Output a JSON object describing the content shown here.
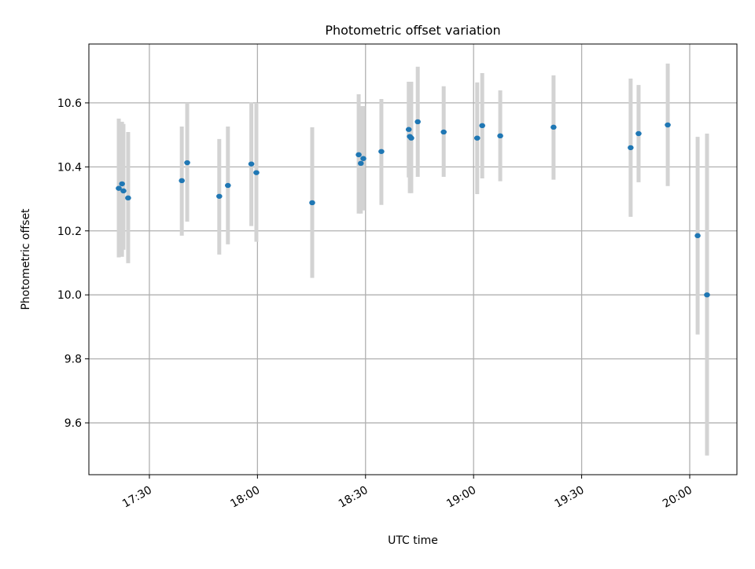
{
  "chart_data": {
    "type": "scatter",
    "title": "Photometric offset variation",
    "xlabel": "UTC time",
    "ylabel": "Photometric offset",
    "xlim": [
      "17:13:12",
      "20:13:06"
    ],
    "ylim": [
      9.438,
      10.784
    ],
    "grid": true,
    "xticks": [
      {
        "t": "17:30",
        "label": "17:30"
      },
      {
        "t": "18:00",
        "label": "18:00"
      },
      {
        "t": "18:30",
        "label": "18:30"
      },
      {
        "t": "19:00",
        "label": "19:00"
      },
      {
        "t": "19:30",
        "label": "19:30"
      },
      {
        "t": "20:00",
        "label": "20:00"
      }
    ],
    "yticks": [
      {
        "v": 9.6,
        "label": "9.6"
      },
      {
        "v": 9.8,
        "label": "9.8"
      },
      {
        "v": 10.0,
        "label": "10.0"
      },
      {
        "v": 10.2,
        "label": "10.2"
      },
      {
        "v": 10.4,
        "label": "10.4"
      },
      {
        "v": 10.6,
        "label": "10.6"
      }
    ],
    "colors": {
      "point": "#1f77b4",
      "errorbar": "#d3d3d3",
      "grid": "#b0b0b0"
    },
    "points": [
      {
        "t": "17:21:30",
        "y": 10.333,
        "lo": 10.117,
        "hi": 10.551
      },
      {
        "t": "17:22:24",
        "y": 10.347,
        "lo": 10.119,
        "hi": 10.541
      },
      {
        "t": "17:22:48",
        "y": 10.325,
        "lo": 10.141,
        "hi": 10.534
      },
      {
        "t": "17:24:06",
        "y": 10.303,
        "lo": 10.099,
        "hi": 10.509
      },
      {
        "t": "17:39:00",
        "y": 10.357,
        "lo": 10.185,
        "hi": 10.526
      },
      {
        "t": "17:40:30",
        "y": 10.413,
        "lo": 10.229,
        "hi": 10.6
      },
      {
        "t": "17:49:24",
        "y": 10.308,
        "lo": 10.126,
        "hi": 10.487
      },
      {
        "t": "17:51:48",
        "y": 10.342,
        "lo": 10.158,
        "hi": 10.526
      },
      {
        "t": "17:58:18",
        "y": 10.409,
        "lo": 10.215,
        "hi": 10.602
      },
      {
        "t": "17:59:42",
        "y": 10.382,
        "lo": 10.166,
        "hi": 10.6
      },
      {
        "t": "18:15:12",
        "y": 10.288,
        "lo": 10.053,
        "hi": 10.524
      },
      {
        "t": "18:28:06",
        "y": 10.438,
        "lo": 10.254,
        "hi": 10.627
      },
      {
        "t": "18:28:42",
        "y": 10.411,
        "lo": 10.254,
        "hi": 10.59
      },
      {
        "t": "18:29:24",
        "y": 10.426,
        "lo": 10.264,
        "hi": 10.59
      },
      {
        "t": "18:34:24",
        "y": 10.448,
        "lo": 10.281,
        "hi": 10.612
      },
      {
        "t": "18:42:00",
        "y": 10.517,
        "lo": 10.367,
        "hi": 10.666
      },
      {
        "t": "18:42:18",
        "y": 10.495,
        "lo": 10.318,
        "hi": 10.666
      },
      {
        "t": "18:42:42",
        "y": 10.49,
        "lo": 10.318,
        "hi": 10.666
      },
      {
        "t": "18:44:30",
        "y": 10.541,
        "lo": 10.369,
        "hi": 10.713
      },
      {
        "t": "18:51:42",
        "y": 10.509,
        "lo": 10.369,
        "hi": 10.652
      },
      {
        "t": "19:01:00",
        "y": 10.49,
        "lo": 10.315,
        "hi": 10.664
      },
      {
        "t": "19:02:24",
        "y": 10.529,
        "lo": 10.364,
        "hi": 10.693
      },
      {
        "t": "19:07:24",
        "y": 10.497,
        "lo": 10.355,
        "hi": 10.639
      },
      {
        "t": "19:22:12",
        "y": 10.524,
        "lo": 10.36,
        "hi": 10.686
      },
      {
        "t": "19:43:36",
        "y": 10.46,
        "lo": 10.244,
        "hi": 10.676
      },
      {
        "t": "19:45:48",
        "y": 10.504,
        "lo": 10.352,
        "hi": 10.656
      },
      {
        "t": "19:53:54",
        "y": 10.531,
        "lo": 10.34,
        "hi": 10.723
      },
      {
        "t": "20:02:12",
        "y": 10.185,
        "lo": 9.876,
        "hi": 10.494
      },
      {
        "t": "20:04:48",
        "y": 10.0,
        "lo": 9.498,
        "hi": 10.504
      }
    ]
  }
}
